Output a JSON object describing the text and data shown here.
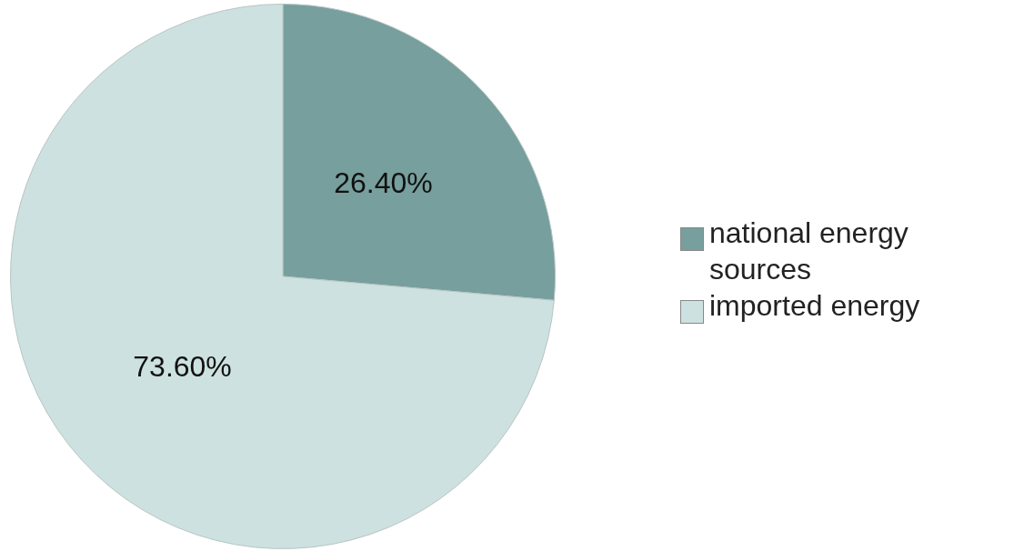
{
  "chart_data": {
    "type": "pie",
    "categories": [
      "national energy sources",
      "imported energy"
    ],
    "values": [
      26.4,
      73.6
    ],
    "colors": [
      "#769f9d",
      "#cde1e0"
    ],
    "value_labels": [
      "26.40%",
      "73.60%"
    ],
    "legend": "right"
  }
}
